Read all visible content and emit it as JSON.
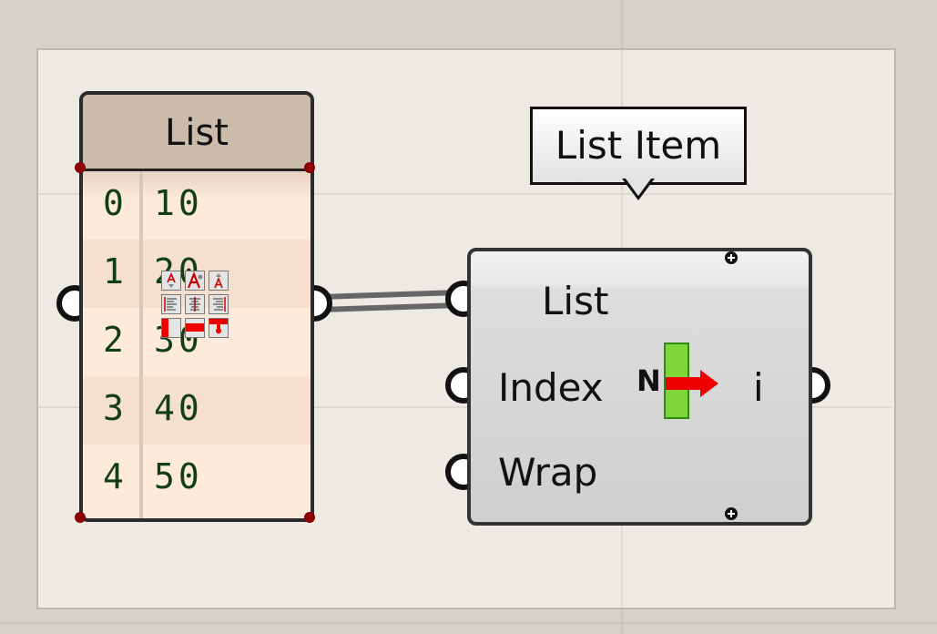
{
  "panel": {
    "title": "List",
    "rows": [
      {
        "index": "0",
        "value": "10"
      },
      {
        "index": "1",
        "value": "20"
      },
      {
        "index": "2",
        "value": "30"
      },
      {
        "index": "3",
        "value": "40"
      },
      {
        "index": "4",
        "value": "50"
      }
    ]
  },
  "component": {
    "tooltip": "List Item",
    "inputs": [
      "List",
      "Index",
      "Wrap"
    ],
    "output": "i",
    "icon": "list-item-icon",
    "icon_letter": "N"
  },
  "toolbar_icons": [
    "text-size-decrease-icon",
    "text-size-a-icon",
    "text-size-increase-icon",
    "align-left-icon",
    "align-center-icon",
    "align-right-icon",
    "color-left-icon",
    "color-fill-icon",
    "color-drip-icon"
  ]
}
